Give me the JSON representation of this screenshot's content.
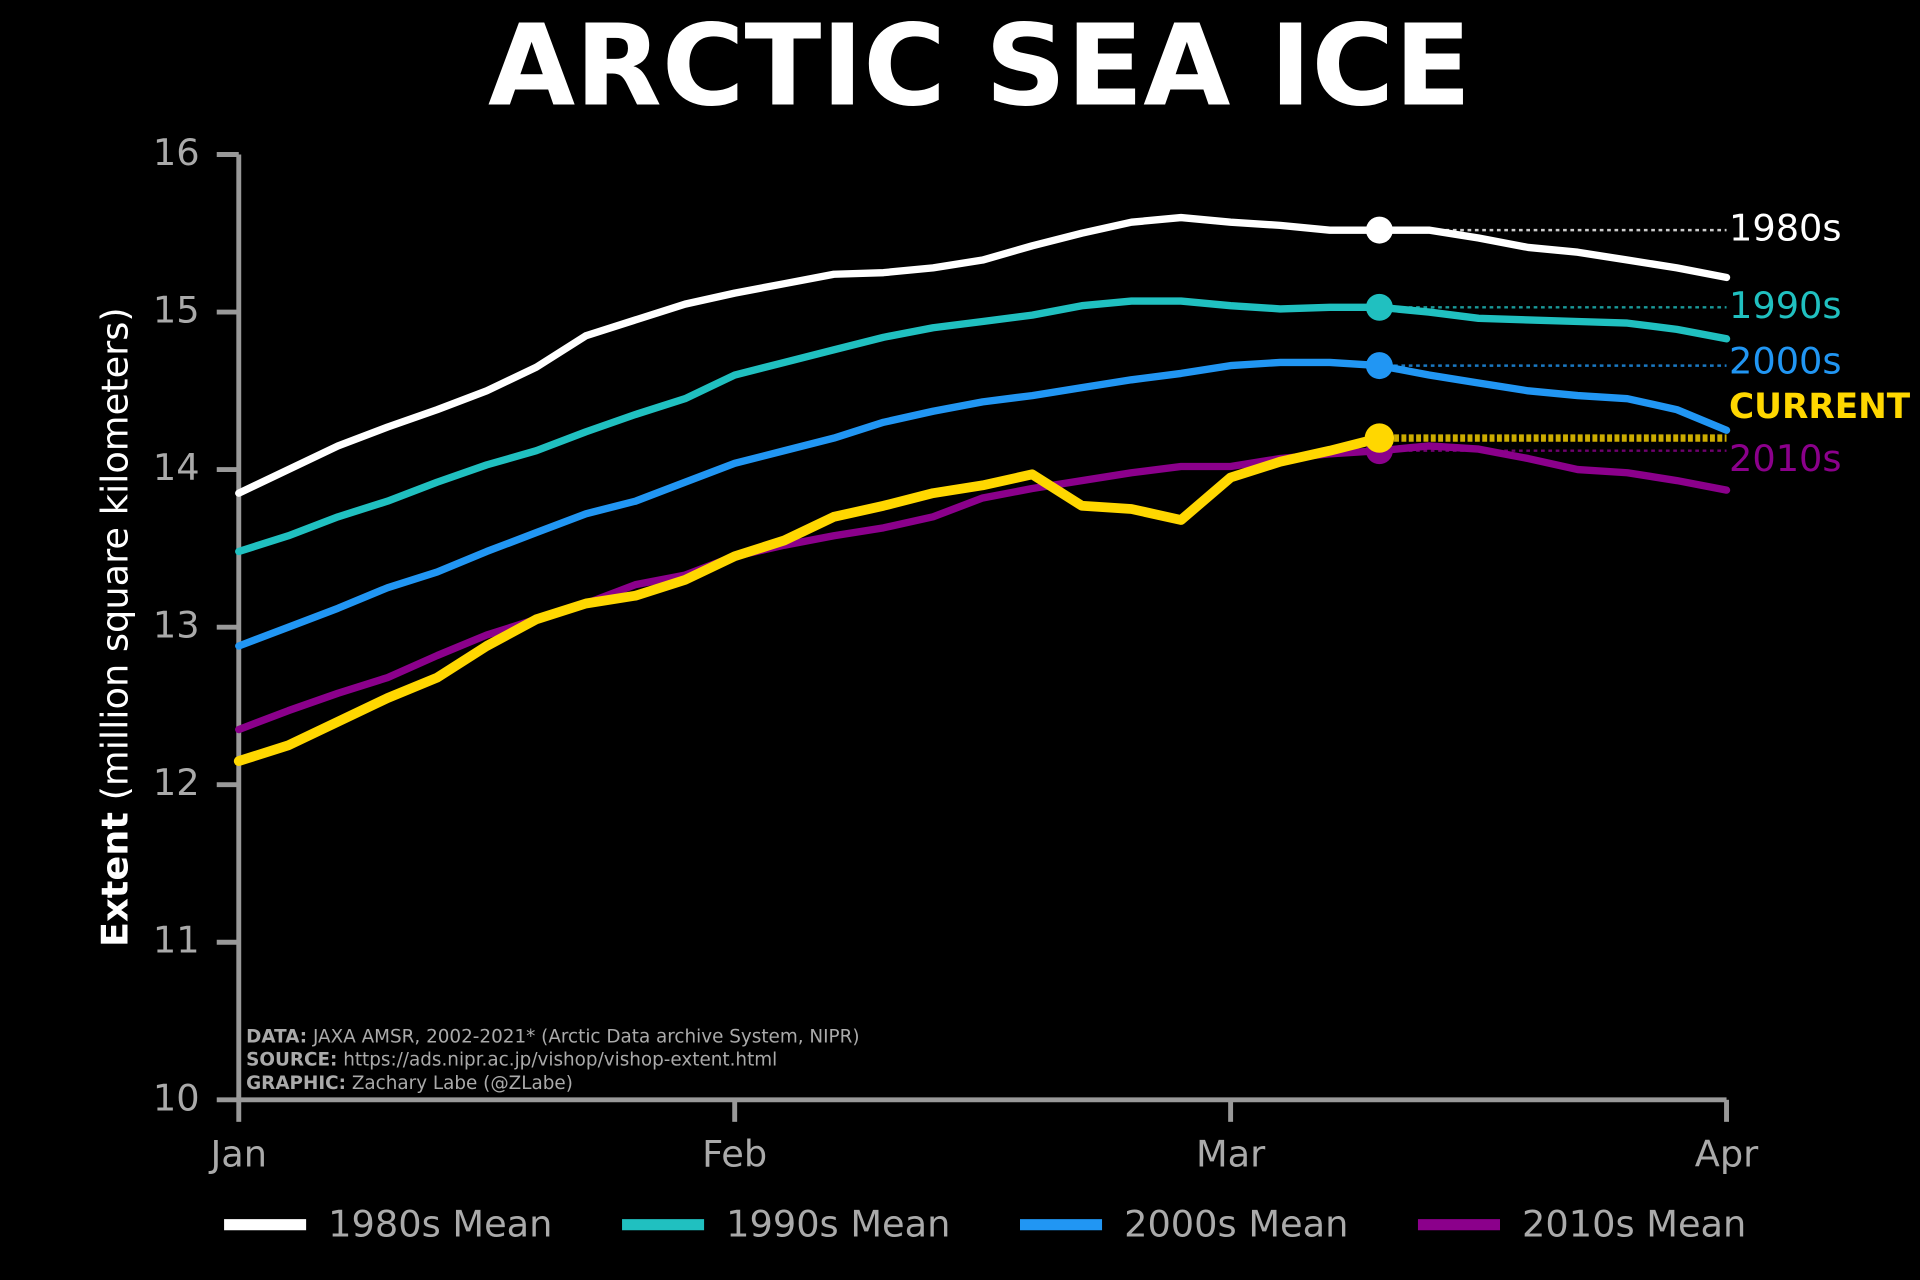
{
  "chart_data": {
    "type": "line",
    "title": "ARCTIC SEA ICE",
    "y_label_bold": "Extent",
    "y_label": "(million square kilometers)",
    "x": [
      0,
      3,
      6,
      9,
      12,
      15,
      18,
      21,
      24,
      27,
      30,
      33,
      36,
      39,
      42,
      45,
      48,
      51,
      54,
      57,
      60,
      63,
      66,
      69,
      72,
      75,
      78,
      81,
      84,
      87,
      90
    ],
    "xlim": [
      0,
      90
    ],
    "xticks": [
      {
        "value": 0,
        "label": "Jan"
      },
      {
        "value": 30,
        "label": "Feb"
      },
      {
        "value": 60,
        "label": "Mar"
      },
      {
        "value": 90,
        "label": "Apr"
      }
    ],
    "ylim": [
      10,
      16
    ],
    "yticks": [
      10,
      11,
      12,
      13,
      14,
      15,
      16
    ],
    "marker_x": 69,
    "series": [
      {
        "name": "1980s Mean",
        "end_label": "1980s",
        "color": "#ffffff",
        "in_legend": true,
        "values": [
          13.85,
          14.0,
          14.15,
          14.27,
          14.38,
          14.5,
          14.65,
          14.85,
          14.95,
          15.05,
          15.12,
          15.18,
          15.24,
          15.25,
          15.28,
          15.33,
          15.42,
          15.5,
          15.57,
          15.6,
          15.57,
          15.55,
          15.52,
          15.52,
          15.52,
          15.47,
          15.41,
          15.38,
          15.33,
          15.28,
          15.22
        ]
      },
      {
        "name": "1990s Mean",
        "end_label": "1990s",
        "color": "#20c0c0",
        "in_legend": true,
        "values": [
          13.48,
          13.58,
          13.7,
          13.8,
          13.92,
          14.03,
          14.12,
          14.24,
          14.35,
          14.45,
          14.6,
          14.68,
          14.76,
          14.84,
          14.9,
          14.94,
          14.98,
          15.04,
          15.07,
          15.07,
          15.04,
          15.02,
          15.03,
          15.03,
          15.0,
          14.96,
          14.95,
          14.94,
          14.93,
          14.89,
          14.83
        ]
      },
      {
        "name": "2000s Mean",
        "end_label": "2000s",
        "color": "#2196f3",
        "in_legend": true,
        "values": [
          12.88,
          13.0,
          13.12,
          13.25,
          13.35,
          13.48,
          13.6,
          13.72,
          13.8,
          13.92,
          14.04,
          14.12,
          14.2,
          14.3,
          14.37,
          14.43,
          14.47,
          14.52,
          14.57,
          14.61,
          14.66,
          14.68,
          14.68,
          14.66,
          14.6,
          14.55,
          14.5,
          14.47,
          14.45,
          14.38,
          14.25
        ]
      },
      {
        "name": "2010s Mean",
        "end_label": "2010s",
        "color": "#8b008b",
        "in_legend": true,
        "values": [
          12.35,
          12.47,
          12.58,
          12.68,
          12.82,
          12.95,
          13.05,
          13.15,
          13.27,
          13.33,
          13.45,
          13.52,
          13.58,
          13.63,
          13.7,
          13.82,
          13.88,
          13.93,
          13.98,
          14.02,
          14.02,
          14.07,
          14.1,
          14.12,
          14.15,
          14.13,
          14.07,
          14.0,
          13.98,
          13.93,
          13.87
        ]
      },
      {
        "name": "CURRENT",
        "end_label": "CURRENT",
        "color": "#ffd700",
        "in_legend": false,
        "values": [
          12.15,
          12.25,
          12.4,
          12.55,
          12.68,
          12.88,
          13.05,
          13.15,
          13.2,
          13.3,
          13.45,
          13.55,
          13.7,
          13.77,
          13.85,
          13.9,
          13.97,
          13.77,
          13.75,
          13.68,
          13.95,
          14.05,
          14.12,
          14.2,
          null,
          null,
          null,
          null,
          null,
          null,
          null
        ]
      }
    ],
    "notes": [
      {
        "label": "DATA:",
        "text": "JAXA AMSR, 2002-2021* (Arctic Data archive System, NIPR)"
      },
      {
        "label": "SOURCE:",
        "text": "https://ads.nipr.ac.jp/vishop/vishop-extent.html"
      },
      {
        "label": "GRAPHIC:",
        "text": "Zachary Labe (@ZLabe)"
      }
    ]
  }
}
